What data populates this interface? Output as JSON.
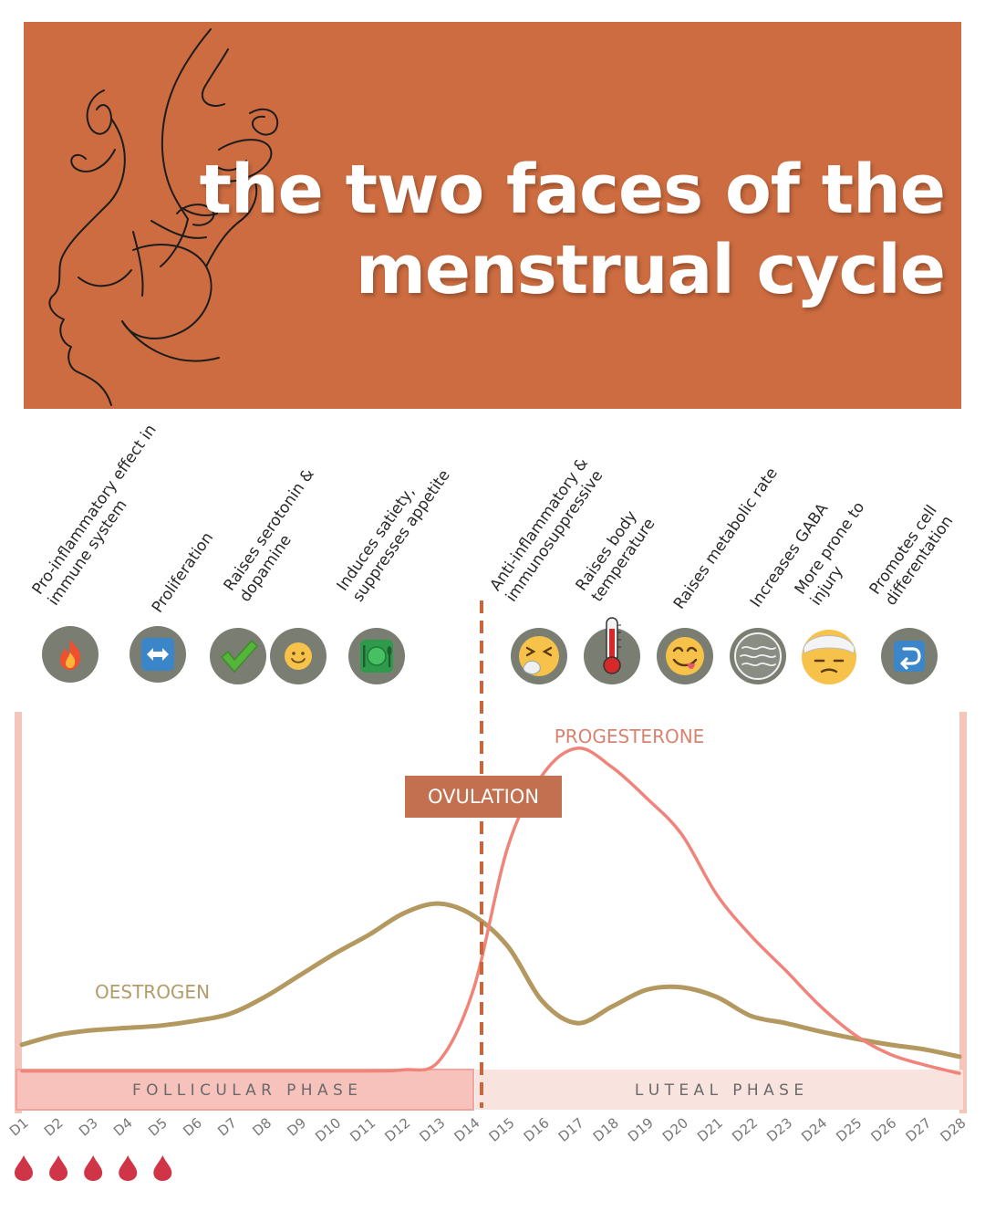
{
  "title": {
    "line1": "the two faces of the",
    "line2": "menstrual cycle"
  },
  "effects": [
    {
      "lines": [
        "Pro-inflammatory effect in",
        "immune system"
      ],
      "icon": "fire-icon"
    },
    {
      "lines": [
        "Proliferation"
      ],
      "icon": "left-right-arrow-icon"
    },
    {
      "lines": [
        "Raises serotonin &",
        "dopamine"
      ],
      "icon": "check-mark-icon"
    },
    {
      "lines": [],
      "icon": "smiley-icon"
    },
    {
      "lines": [
        "Induces satiety,",
        "suppresses appetite"
      ],
      "icon": "plate-cutlery-icon"
    },
    {
      "lines": [
        "Anti-inflammatory &",
        "immunosuppressive"
      ],
      "icon": "sneezing-face-icon"
    },
    {
      "lines": [
        "Raises body",
        "temperature"
      ],
      "icon": "thermometer-icon"
    },
    {
      "lines": [
        "Raises metabolic rate"
      ],
      "icon": "yum-face-icon"
    },
    {
      "lines": [
        "Increases GABA"
      ],
      "icon": "calm-waves-icon"
    },
    {
      "lines": [
        "More prone to",
        "injury"
      ],
      "icon": "bandaged-head-icon"
    },
    {
      "lines": [
        "Promotes cell",
        "differentation"
      ],
      "icon": "return-arrow-icon"
    }
  ],
  "colors": {
    "banner": "#cc6c40",
    "oestrogen": "#b39960",
    "progesterone": "#f0847a",
    "ovulation_box": "#c2704f",
    "follicular_band": "#f7c2bc",
    "luteal_band": "#f9e3df",
    "blood_drop": "#d03447",
    "icon_bg": "#7a7d72"
  },
  "chart_data": {
    "type": "line",
    "x": [
      "D1",
      "D2",
      "D3",
      "D4",
      "D5",
      "D6",
      "D7",
      "D8",
      "D9",
      "D10",
      "D11",
      "D12",
      "D13",
      "D14",
      "D15",
      "D16",
      "D17",
      "D18",
      "D19",
      "D20",
      "D21",
      "D22",
      "D23",
      "D24",
      "D25",
      "D26",
      "D27",
      "D28"
    ],
    "series": [
      {
        "name": "OESTROGEN",
        "values": [
          4,
          12,
          16,
          18,
          20,
          24,
          30,
          44,
          62,
          80,
          96,
          114,
          122,
          112,
          86,
          40,
          22,
          36,
          50,
          52,
          44,
          28,
          22,
          15,
          9,
          4,
          0,
          -6
        ]
      },
      {
        "name": "PROGESTERONE",
        "values": [
          -18,
          -18,
          -18,
          -18,
          -18,
          -18,
          -18,
          -18,
          -18,
          -18,
          -18,
          -17,
          -10,
          50,
          170,
          230,
          252,
          236,
          210,
          180,
          130,
          95,
          66,
          36,
          12,
          -4,
          -13,
          -20
        ]
      }
    ],
    "ovulation_label": "OVULATION",
    "ovulation_day": 14,
    "phases": [
      {
        "label": "F O L L I C U L A R   P H A S E",
        "from": 1,
        "to": 14
      },
      {
        "label": "L U T E A L   P H A S E",
        "from": 14,
        "to": 28
      }
    ],
    "menstruation_days": [
      1,
      2,
      3,
      4,
      5
    ],
    "ylim": [
      -30,
      260
    ]
  }
}
